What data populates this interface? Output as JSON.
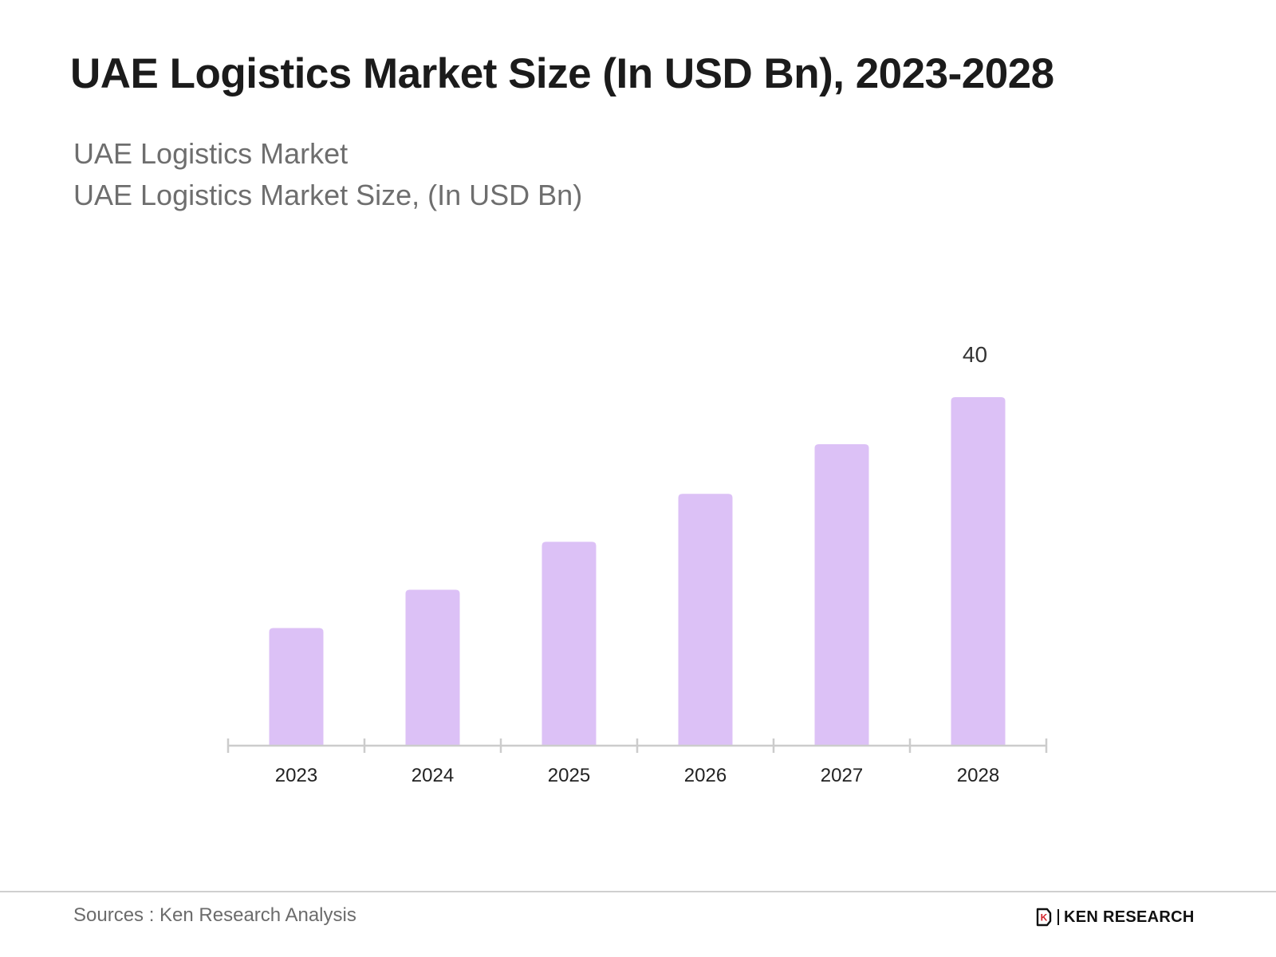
{
  "header": {
    "title": "UAE Logistics Market Size (In USD Bn), 2023-2028",
    "subtitle_1": "UAE Logistics Market",
    "subtitle_2": "UAE Logistics Market Size, (In USD Bn)"
  },
  "footer": {
    "source": "Sources : Ken Research Analysis",
    "logo_text": "KEN RESEARCH",
    "logo_mark": "K"
  },
  "colors": {
    "bar": "#dcc1f6",
    "axis": "#cccccc",
    "tick_label": "#222222",
    "data_label": "#333333"
  },
  "chart_data": {
    "type": "bar",
    "title": "UAE Logistics Market Size (In USD Bn), 2023-2028",
    "subtitle": "UAE Logistics Market Size, (In USD Bn)",
    "categories": [
      "2023",
      "2024",
      "2025",
      "2026",
      "2027",
      "2028"
    ],
    "values": [
      13.5,
      17.9,
      23.4,
      28.9,
      34.6,
      40
    ],
    "data_labels": [
      null,
      null,
      null,
      null,
      null,
      "40"
    ],
    "xlabel": "",
    "ylabel": "",
    "ylim": [
      0,
      40
    ],
    "grid": false,
    "legend": "none"
  }
}
